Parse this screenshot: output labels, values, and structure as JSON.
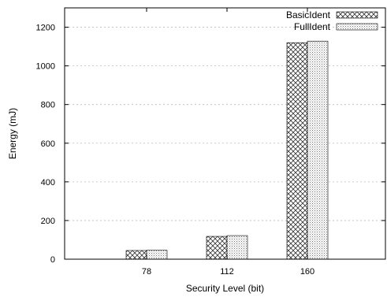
{
  "chart_data": {
    "type": "bar",
    "title": "",
    "xlabel": "Security Level (bit)",
    "ylabel": "Energy (mJ)",
    "categories": [
      "78",
      "112",
      "160"
    ],
    "series": [
      {
        "name": "BasicIdent",
        "values": [
          45,
          118,
          1120
        ],
        "pattern": "crosshatch"
      },
      {
        "name": "FullIdent",
        "values": [
          46,
          122,
          1128
        ],
        "pattern": "dots"
      }
    ],
    "ylim": [
      0,
      1300
    ],
    "yticks": [
      0,
      200,
      400,
      600,
      800,
      1000,
      1200
    ],
    "grid": true,
    "legend": "top-right",
    "colors": {
      "axis": "#000000",
      "grid": "#bbbbbb",
      "bar_stroke": "#000000"
    }
  }
}
